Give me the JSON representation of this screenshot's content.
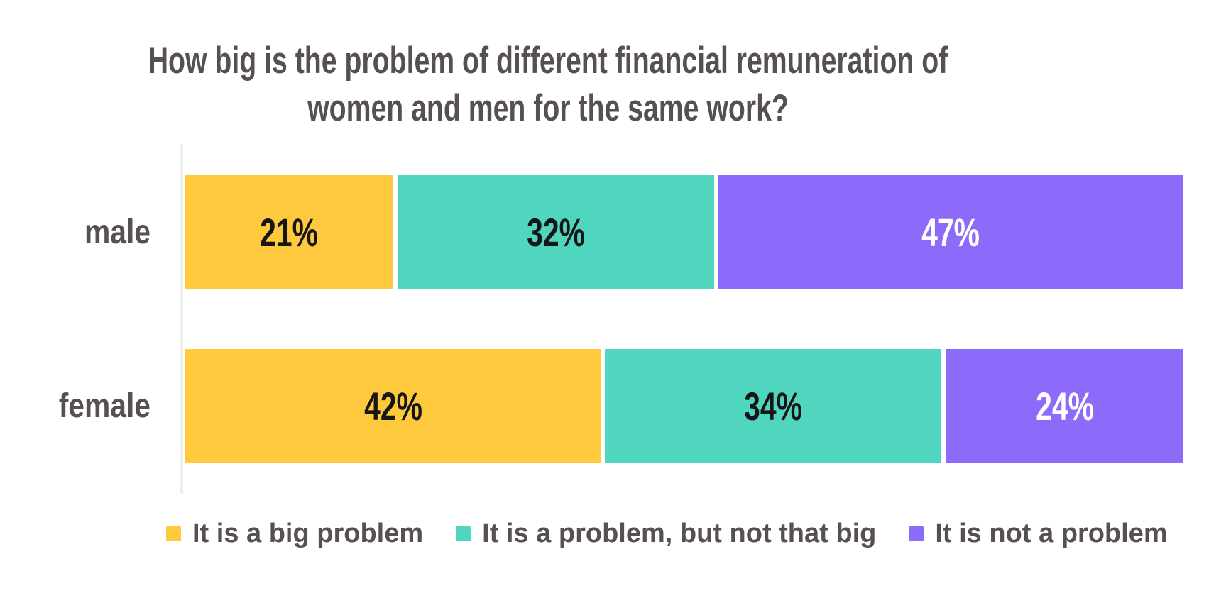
{
  "title": {
    "lines": [
      "How big is the problem of different financial remuneration of",
      "women and men for the same work?"
    ],
    "text": "How big is the problem of different financial remuneration of women and men for the same work?"
  },
  "colors": {
    "title_text": "#575052",
    "category_text": "#575052",
    "legend_text": "#575052",
    "axis_line": "#EDEDED",
    "background": "#FFFFFF",
    "segment_border": "#FFFFFF"
  },
  "chart_data": {
    "type": "bar",
    "orientation": "horizontal_stacked",
    "title": "How big is the problem of different financial remuneration of women and men for the same work?",
    "categories": [
      "male",
      "female"
    ],
    "series": [
      {
        "name": "It is a big problem",
        "color": "#FFC93D",
        "value_label_color": "#161616",
        "values": [
          21,
          42
        ]
      },
      {
        "name": "It is a problem, but not that big",
        "color": "#50D6BE",
        "value_label_color": "#161616",
        "values": [
          32,
          34
        ]
      },
      {
        "name": "It is not a problem",
        "color": "#8C6AFA",
        "value_label_color": "#FFFFFF",
        "values": [
          47,
          24
        ]
      }
    ],
    "unit": "%",
    "xlim": [
      0,
      100
    ],
    "xlabel": "",
    "ylabel": "",
    "grid": false,
    "legend_position": "bottom",
    "value_labels_shown": true
  }
}
